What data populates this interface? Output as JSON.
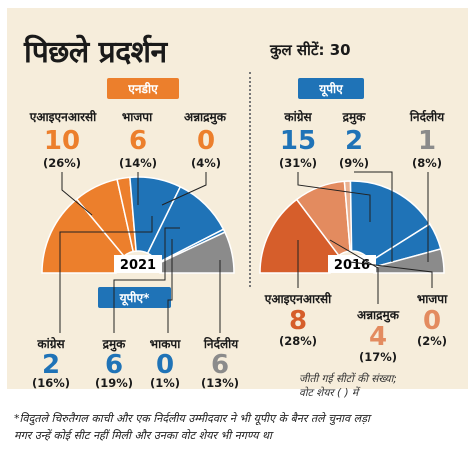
{
  "title": "पिछले प्रदर्शन",
  "total_seats": "कुल सीटें: 30",
  "tags": {
    "nda": "एनडीए",
    "upa_2016": "यूपीए",
    "upa_2021": "यूपीए*"
  },
  "colors": {
    "orange": "#ec7f2c",
    "blue": "#1f73b7",
    "gray": "#8b8b8b",
    "red2016": "#d65e2b",
    "salmon2016": "#e38b5f"
  },
  "chart_data": [
    {
      "type": "pie",
      "variant": "semicircle",
      "year_label": "2021",
      "slices": [
        {
          "party": "एआइएनआरसी",
          "seats": "10",
          "share": "(26%)",
          "share_value": 26,
          "color": "#ec7f2c"
        },
        {
          "party": "भाजपा",
          "seats": "6",
          "share": "(14%)",
          "share_value": 14,
          "color": "#ec7f2c"
        },
        {
          "party": "अन्नाद्रमुक",
          "seats": "0",
          "share": "(4%)",
          "share_value": 4,
          "color": "#ec7f2c"
        },
        {
          "party": "कांग्रेस",
          "seats": "2",
          "share": "(16%)",
          "share_value": 16,
          "color": "#1f73b7"
        },
        {
          "party": "द्रमुक",
          "seats": "6",
          "share": "(19%)",
          "share_value": 19,
          "color": "#1f73b7"
        },
        {
          "party": "भाकपा",
          "seats": "0",
          "share": "(1%)",
          "share_value": 1,
          "color": "#1f73b7"
        },
        {
          "party": "निर्दलीय",
          "seats": "6",
          "share": "(13%)",
          "share_value": 13,
          "color": "#8b8b8b"
        }
      ]
    },
    {
      "type": "pie",
      "variant": "semicircle",
      "year_label": "2016",
      "slices": [
        {
          "party": "एआइएनआरसी",
          "seats": "8",
          "share": "(28%)",
          "share_value": 28,
          "color": "#d65e2b"
        },
        {
          "party": "अन्नाद्रमुक",
          "seats": "4",
          "share": "(17%)",
          "share_value": 17,
          "color": "#e38b5f"
        },
        {
          "party": "भाजपा",
          "seats": "0",
          "share": "(2%)",
          "share_value": 2,
          "color": "#e9b090"
        },
        {
          "party": "कांग्रेस",
          "seats": "15",
          "share": "(31%)",
          "share_value": 31,
          "color": "#1f73b7"
        },
        {
          "party": "द्रमुक",
          "seats": "2",
          "share": "(9%)",
          "share_value": 9,
          "color": "#1f73b7"
        },
        {
          "party": "निर्दलीय",
          "seats": "1",
          "share": "(8%)",
          "share_value": 8,
          "color": "#8b8b8b"
        }
      ]
    }
  ],
  "note": [
    "जीती गई सीटों की संख्या;",
    "वोट शेयर ( ) में"
  ],
  "footnote": [
    "*विदुतले चिरुतैगल काची और एक निर्दलीय उम्मीदवार ने भी यूपीए के बैनर तले चुनाव लड़ा",
    "मगर उन्हें कोई सीट नहीं मिली और उनका वोट शेयर भी नगण्य था"
  ]
}
